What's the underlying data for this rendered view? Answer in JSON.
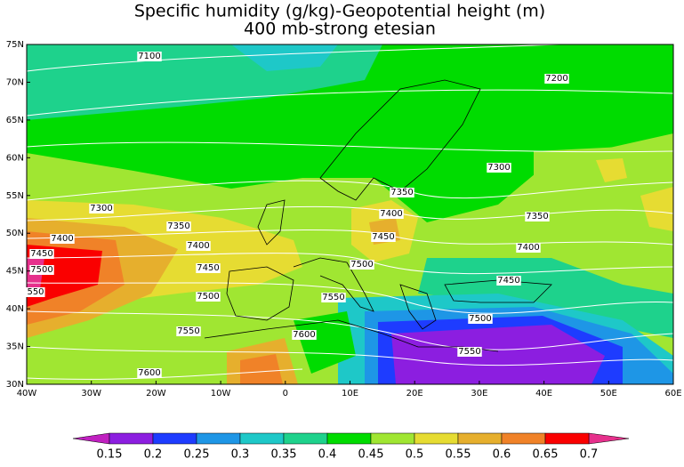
{
  "title": "Specific humidity (g/kg)-Geopotential height (m)",
  "subtitle": "400 mb-strong etesian",
  "lat_labels": [
    "75N",
    "70N",
    "65N",
    "60N",
    "55N",
    "50N",
    "45N",
    "40N",
    "35N",
    "30N"
  ],
  "lon_labels": [
    "40W",
    "30W",
    "20W",
    "10W",
    "0",
    "10E",
    "20E",
    "30E",
    "40E",
    "50E",
    "60E"
  ],
  "contour_labels": [
    "7100",
    "7200",
    "7300",
    "7350",
    "7400",
    "7450",
    "7350",
    "7400",
    "7300",
    "7350",
    "7400",
    "7400",
    "7450",
    "7500",
    "7450",
    "7500",
    "7450",
    "550",
    "7500",
    "7550",
    "7500",
    "7550",
    "7600",
    "7550",
    "7600"
  ],
  "colorbar": {
    "labels": [
      "0.15",
      "0.2",
      "0.25",
      "0.3",
      "0.35",
      "0.4",
      "0.45",
      "0.5",
      "0.55",
      "0.6",
      "0.65",
      "0.7"
    ],
    "colors": [
      "#8c1ee0",
      "#1e3cff",
      "#1e96e6",
      "#1ec8c8",
      "#1ed28c",
      "#00dc00",
      "#a0e632",
      "#e6dc32",
      "#e6af2d",
      "#f08228",
      "#fa0000"
    ],
    "low_color": "#c020c0",
    "high_color": "#e6308c"
  }
}
